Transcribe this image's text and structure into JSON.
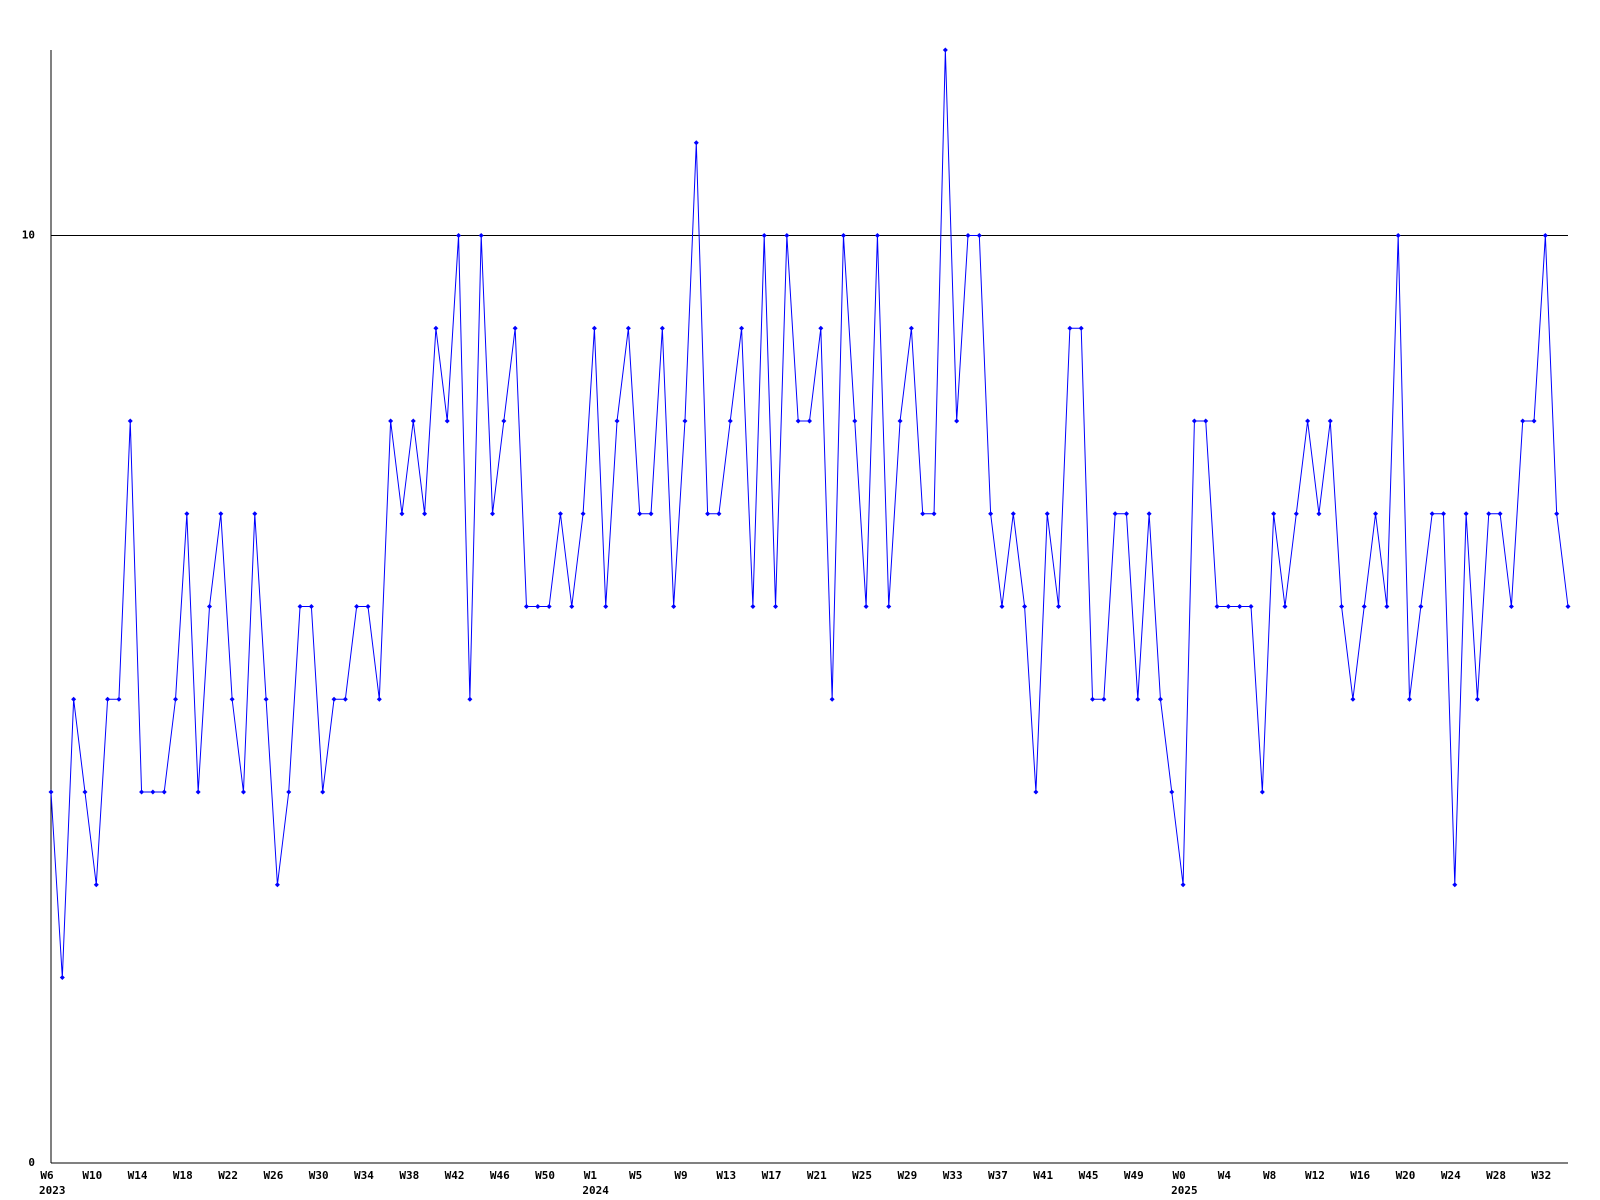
{
  "chart_data": {
    "type": "line",
    "categories": [
      "W6",
      null,
      null,
      null,
      "W10",
      null,
      null,
      null,
      "W14",
      null,
      null,
      null,
      "W18",
      null,
      null,
      null,
      "W22",
      null,
      null,
      null,
      "W26",
      null,
      null,
      null,
      "W30",
      null,
      null,
      null,
      "W34",
      null,
      null,
      null,
      "W38",
      null,
      null,
      null,
      "W42",
      null,
      null,
      null,
      "W46",
      null,
      null,
      null,
      "W50",
      null,
      null,
      null,
      "W1",
      null,
      null,
      null,
      "W5",
      null,
      null,
      null,
      "W9",
      null,
      null,
      null,
      "W13",
      null,
      null,
      null,
      "W17",
      null,
      null,
      null,
      "W21",
      null,
      null,
      null,
      "W25",
      null,
      null,
      null,
      "W29",
      null,
      null,
      null,
      "W33",
      null,
      null,
      null,
      "W37",
      null,
      null,
      null,
      "W41",
      null,
      null,
      null,
      "W45",
      null,
      null,
      null,
      "W49",
      null,
      null,
      null,
      "W0",
      null,
      null,
      null,
      "W4",
      null,
      null,
      null,
      "W8",
      null,
      null,
      null,
      "W12",
      null,
      null,
      null,
      "W16",
      null,
      null,
      null,
      "W20",
      null,
      null,
      null,
      "W24",
      null,
      null,
      null,
      "W28",
      null,
      null,
      null,
      "W32",
      null,
      null
    ],
    "years": [
      "2023",
      null,
      null,
      null,
      null,
      null,
      null,
      null,
      null,
      null,
      null,
      null,
      null,
      null,
      null,
      null,
      null,
      null,
      null,
      null,
      null,
      null,
      null,
      null,
      null,
      null,
      null,
      null,
      null,
      null,
      null,
      null,
      null,
      null,
      null,
      null,
      null,
      null,
      null,
      null,
      null,
      null,
      null,
      null,
      null,
      null,
      null,
      null,
      "2024",
      null,
      null,
      null,
      null,
      null,
      null,
      null,
      null,
      null,
      null,
      null,
      null,
      null,
      null,
      null,
      null,
      null,
      null,
      null,
      null,
      null,
      null,
      null,
      null,
      null,
      null,
      null,
      null,
      null,
      null,
      null,
      null,
      null,
      null,
      null,
      null,
      null,
      null,
      null,
      null,
      null,
      null,
      null,
      null,
      null,
      null,
      null,
      null,
      null,
      null,
      null,
      "2025",
      null,
      null,
      null,
      null,
      null,
      null,
      null,
      null,
      null,
      null,
      null,
      null,
      null,
      null,
      null,
      null,
      null,
      null,
      null,
      null,
      null,
      null,
      null,
      null,
      null,
      null,
      null,
      null,
      null,
      null,
      null,
      null,
      null,
      null
    ],
    "series": [
      {
        "color": "#0000ff",
        "values": [
          4,
          2,
          5,
          4,
          3,
          5,
          5,
          8,
          4,
          4,
          4,
          5,
          7,
          4,
          6,
          7,
          5,
          4,
          7,
          5,
          3,
          4,
          6,
          6,
          4,
          5,
          5,
          6,
          6,
          5,
          8,
          7,
          8,
          7,
          9,
          8,
          10,
          5,
          10,
          7,
          8,
          9,
          6,
          6,
          6,
          7,
          6,
          7,
          9,
          6,
          8,
          9,
          7,
          7,
          9,
          6,
          8,
          11,
          7,
          7,
          8,
          9,
          6,
          10,
          6,
          10,
          8,
          8,
          9,
          5,
          10,
          8,
          6,
          10,
          6,
          8,
          9,
          7,
          7,
          12,
          8,
          10,
          10,
          7,
          6,
          7,
          6,
          4,
          7,
          6,
          9,
          9,
          5,
          5,
          7,
          7,
          5,
          7,
          5,
          4,
          3,
          8,
          8,
          6,
          6,
          6,
          6,
          4,
          7,
          6,
          7,
          8,
          7,
          8,
          6,
          5,
          6,
          7,
          6,
          10,
          5,
          6,
          7,
          7,
          3,
          7,
          5,
          7,
          7,
          6,
          8,
          8,
          10,
          7,
          6
        ]
      }
    ],
    "ylim": [
      0,
      12
    ],
    "yticks": [
      0,
      10
    ],
    "grid": true
  }
}
